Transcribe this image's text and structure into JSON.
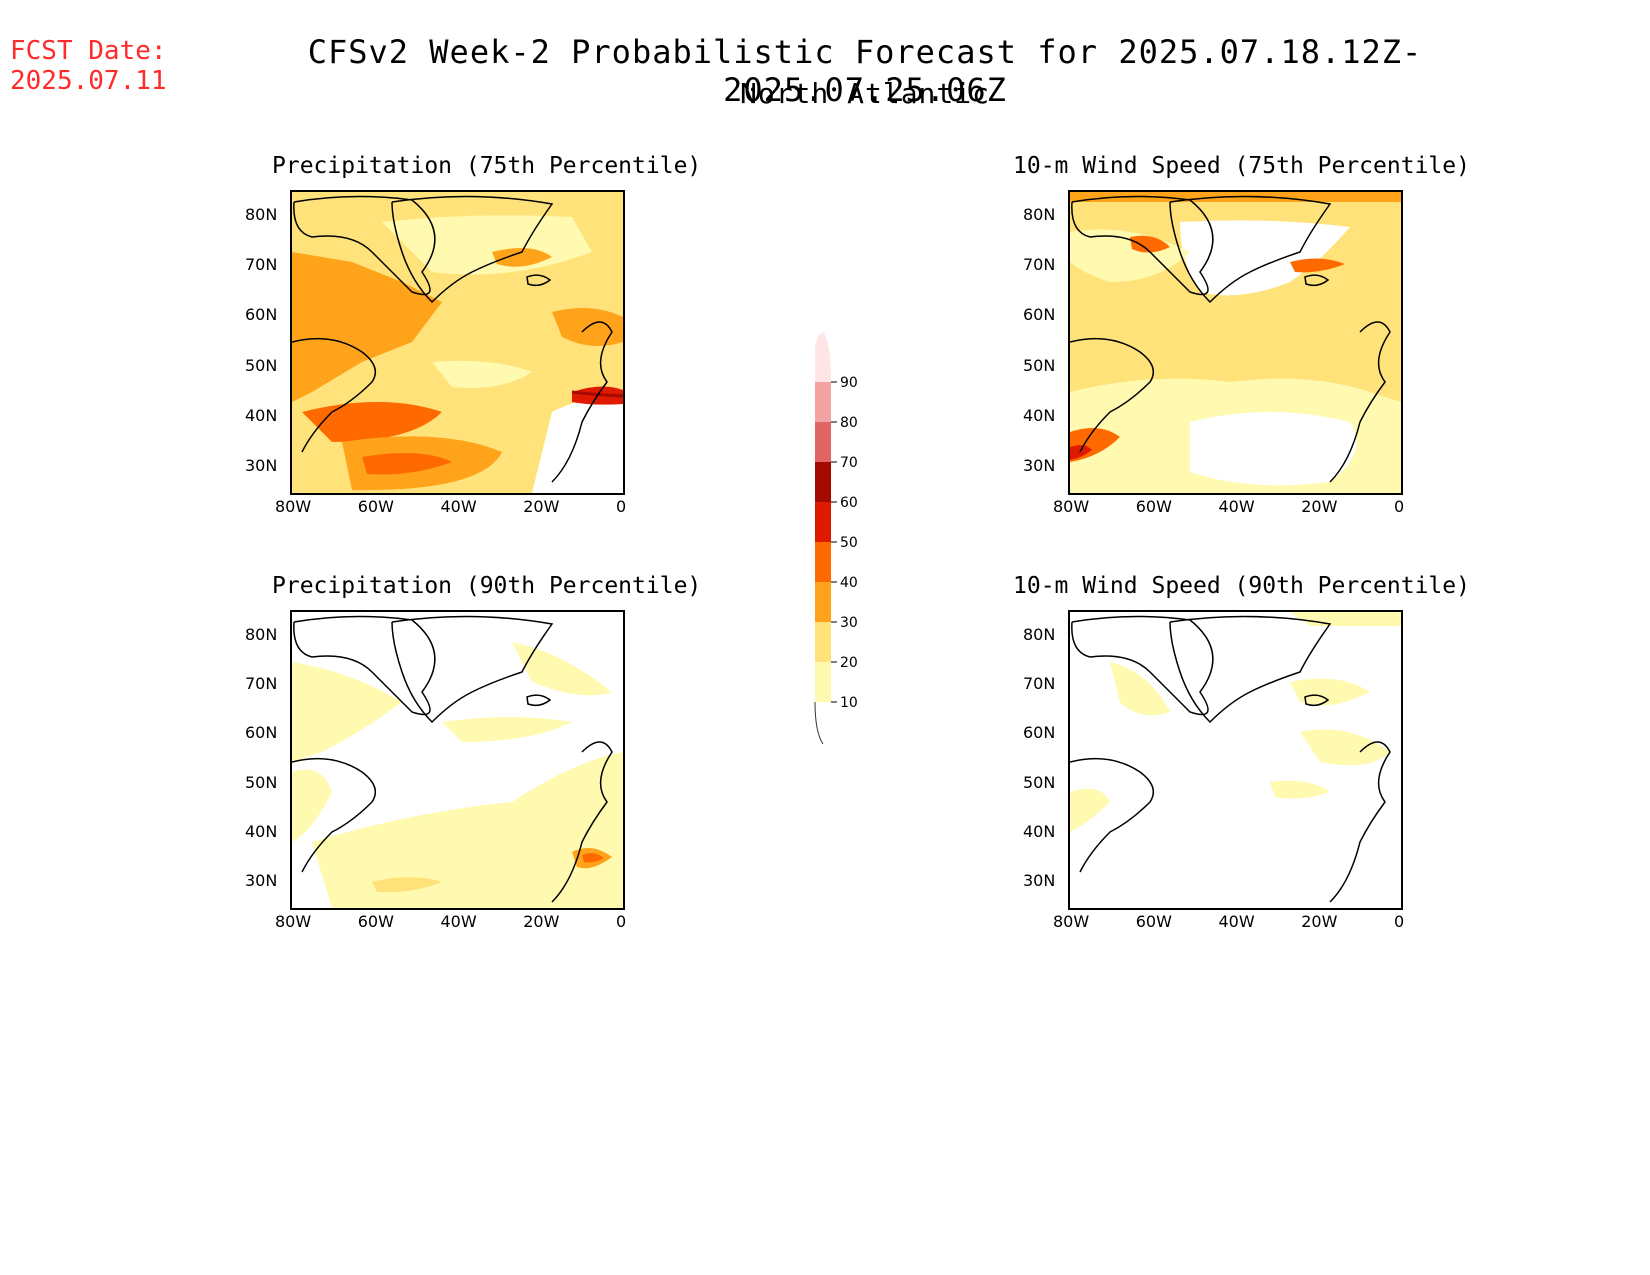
{
  "header": {
    "fcst_label": "FCST Date:",
    "fcst_date": "2025.07.11",
    "title": "CFSv2 Week-2 Probabilistic Forecast for 2025.07.18.12Z-2025.07.25.06Z",
    "subtitle": "North Atlantic"
  },
  "panels": {
    "precip75": {
      "title": "Precipitation (75th Percentile)"
    },
    "wind75": {
      "title": "10-m Wind Speed (75th Percentile)"
    },
    "precip90": {
      "title": "Precipitation (90th Percentile)"
    },
    "wind90": {
      "title": "10-m Wind Speed (90th Percentile)"
    }
  },
  "axes": {
    "lat_labels": [
      "80N",
      "70N",
      "60N",
      "50N",
      "40N",
      "30N"
    ],
    "lon_labels": [
      "80W",
      "60W",
      "40W",
      "20W",
      "0"
    ]
  },
  "colorbar": {
    "levels": [
      "10",
      "20",
      "30",
      "40",
      "50",
      "60",
      "70",
      "80",
      "90"
    ],
    "colors": [
      "#fffaaf",
      "#ffe37a",
      "#ffa31a",
      "#ff6a00",
      "#e01a00",
      "#a50a00",
      "#e06666",
      "#f4a3a3",
      "#ffe5e5"
    ]
  }
}
